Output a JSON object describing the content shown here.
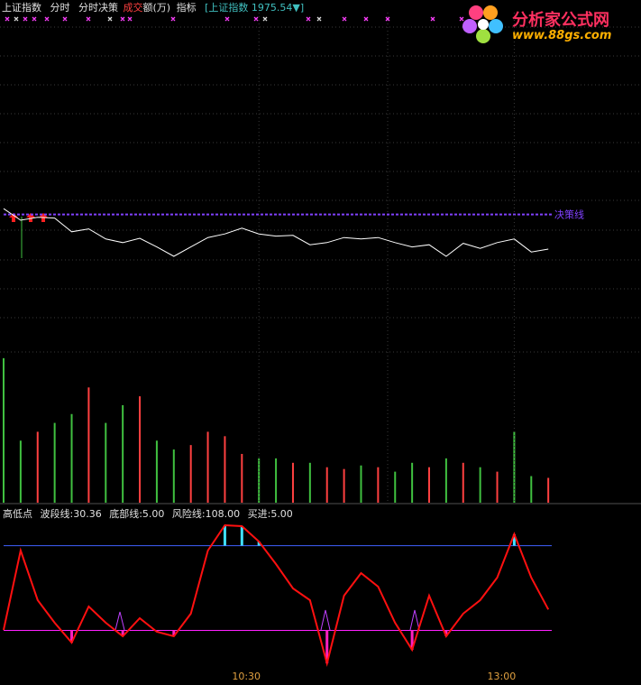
{
  "header": {
    "items": [
      "上证指数",
      "分时",
      "分时决策"
    ],
    "volume_name": [
      "成交",
      "额(万)"
    ],
    "indicator": "指标",
    "quote": "[上证指数 1975.54▼]"
  },
  "logo": {
    "title": "分析家公式网",
    "url": "www.88gs.com"
  },
  "chart_data": [
    {
      "type": "line",
      "color": "#ffffff",
      "x": [
        0,
        4,
        8,
        12,
        16,
        20,
        24,
        28,
        32,
        36,
        40,
        44,
        48,
        52,
        56,
        60,
        64,
        68,
        72,
        76,
        80,
        84,
        88,
        92,
        96,
        100,
        104,
        108,
        112,
        116,
        120,
        124,
        128
      ],
      "values": [
        1981.1,
        1979.5,
        1979.9,
        1979.8,
        1977.9,
        1978.3,
        1976.9,
        1976.4,
        1977.0,
        1975.8,
        1974.5,
        1975.8,
        1977.1,
        1977.6,
        1978.4,
        1977.6,
        1977.3,
        1977.4,
        1976.1,
        1976.4,
        1977.1,
        1976.9,
        1977.1,
        1976.4,
        1975.8,
        1976.1,
        1974.5,
        1976.3,
        1975.6,
        1976.4,
        1976.9,
        1975.1,
        1975.5
      ],
      "xlim": [
        0,
        150
      ],
      "ylim": [
        1961,
        2010
      ],
      "decision_line": {
        "label": "决策线",
        "value": 1980.3,
        "color": "#8040ff"
      }
    },
    {
      "type": "bar",
      "x": [
        0,
        4,
        8,
        12,
        16,
        20,
        24,
        28,
        32,
        36,
        40,
        44,
        48,
        52,
        56,
        60,
        64,
        68,
        72,
        76,
        80,
        84,
        88,
        92,
        96,
        100,
        104,
        108,
        112,
        116,
        120,
        124,
        128
      ],
      "values": [
        163,
        70,
        80,
        90,
        100,
        130,
        90,
        110,
        120,
        70,
        60,
        65,
        80,
        75,
        55,
        50,
        50,
        45,
        45,
        40,
        38,
        42,
        40,
        35,
        45,
        40,
        50,
        45,
        40,
        35,
        80,
        30,
        28
      ],
      "colors": [
        "#40c040",
        "#40c040",
        "#ff4040",
        "#40c040",
        "#40c040",
        "#ff4040",
        "#40c040",
        "#40c040",
        "#ff4040",
        "#40c040",
        "#40c040",
        "#ff4040",
        "#ff4040",
        "#ff4040",
        "#ff4040",
        "#40c040",
        "#40c040",
        "#ff4040",
        "#40c040",
        "#ff4040",
        "#ff4040",
        "#40c040",
        "#ff4040",
        "#40c040",
        "#40c040",
        "#ff4040",
        "#40c040",
        "#ff4040",
        "#40c040",
        "#ff4040",
        "#40c040",
        "#40c040",
        "#ff4040"
      ],
      "xlim": [
        0,
        150
      ],
      "ylim": [
        0,
        170
      ]
    },
    {
      "type": "line",
      "title": "高低点",
      "color": "#ff1010",
      "x": [
        0,
        4,
        8,
        12,
        16,
        20,
        24,
        28,
        32,
        36,
        40,
        44,
        48,
        52,
        56,
        60,
        64,
        68,
        72,
        76,
        80,
        84,
        88,
        92,
        96,
        100,
        104,
        108,
        112,
        116,
        120,
        124,
        128
      ],
      "values": [
        5.5,
        102.1,
        41.7,
        14.3,
        -9.9,
        34.0,
        14.3,
        -2.2,
        19.8,
        3.3,
        -2.2,
        25.3,
        102.1,
        132.8,
        131.7,
        113.1,
        85.6,
        56.0,
        41.7,
        -35.1,
        47.2,
        74.6,
        58.2,
        14.3,
        -18.7,
        47.2,
        -2.2,
        25.3,
        41.7,
        69.2,
        121.9,
        69.2,
        30.36
      ],
      "readouts": [
        {
          "label": "波段线:30.36",
          "value": 30.36
        },
        {
          "label": "底部线:5.00",
          "value": 5,
          "color": "#ff20ff"
        },
        {
          "label": "风险线:108.00",
          "value": 108,
          "color": "#4060ff"
        },
        {
          "label": "买进:5.00",
          "value": 5
        }
      ],
      "xlim": [
        0,
        150
      ],
      "ylim": [
        -45,
        135
      ],
      "xticks": [
        {
          "value": 60,
          "label": "10:30"
        },
        {
          "value": 120,
          "label": "13:00"
        }
      ]
    }
  ]
}
